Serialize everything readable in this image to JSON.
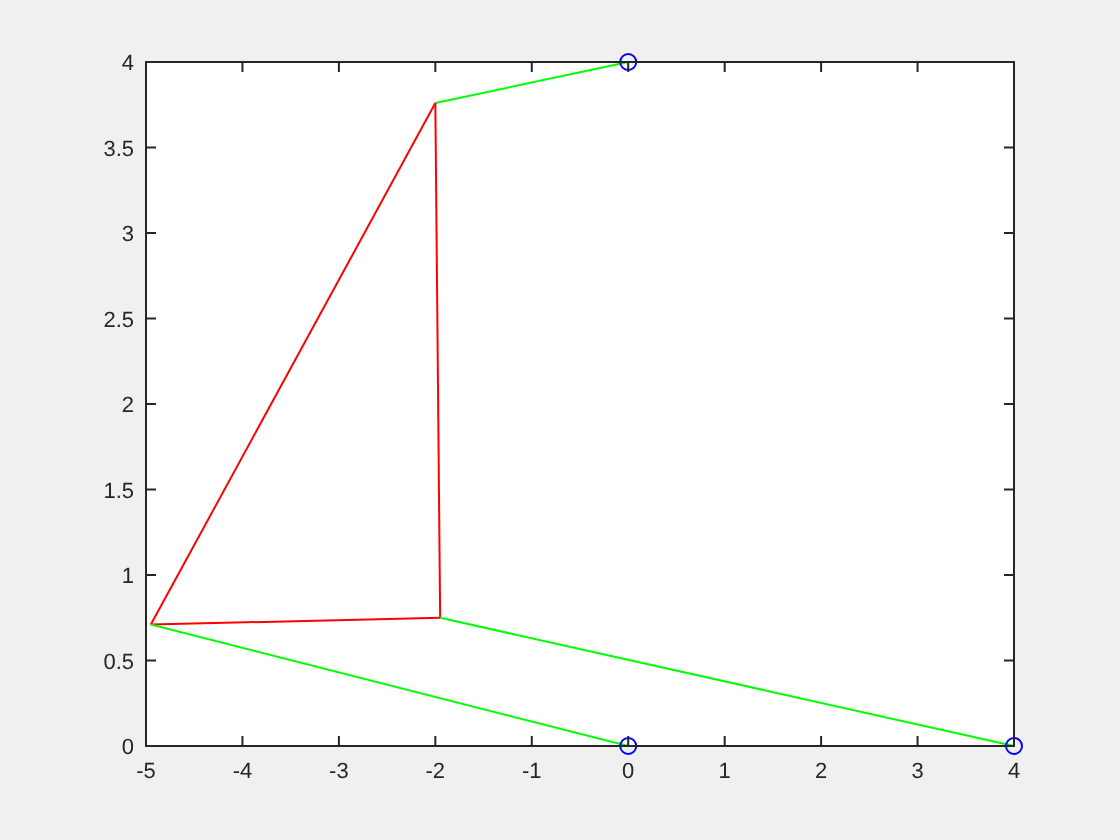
{
  "chart_data": {
    "type": "line",
    "xlim": [
      -5,
      4
    ],
    "xticks": [
      -5,
      -4,
      -3,
      -2,
      -1,
      0,
      1,
      2,
      3,
      4
    ],
    "ylim": [
      0,
      4
    ],
    "yticks": [
      0,
      0.5,
      1,
      1.5,
      2,
      2.5,
      3,
      3.5,
      4
    ],
    "grid": false,
    "marker": "none",
    "line_style": "solid",
    "series": [
      {
        "color": "#00ff00",
        "x": [
          -2,
          0
        ],
        "values": [
          3.76,
          4
        ]
      },
      {
        "color": "#ff0000",
        "x": [
          -4.95,
          -2
        ],
        "values": [
          0.71,
          3.76
        ]
      },
      {
        "color": "#ff0000",
        "x": [
          -4.95,
          -1.95
        ],
        "values": [
          0.71,
          0.75
        ]
      },
      {
        "color": "#ff0000",
        "x": [
          -2,
          -1.95
        ],
        "values": [
          3.76,
          0.75
        ]
      },
      {
        "color": "#00ff00",
        "x": [
          -4.95,
          0
        ],
        "values": [
          0.71,
          0
        ]
      },
      {
        "color": "#00ff00",
        "x": [
          -1.95,
          4
        ],
        "values": [
          0.75,
          0
        ]
      },
      {
        "type": "scatter",
        "color": "#0000ff",
        "marker": "circle",
        "x": [
          0,
          0,
          4
        ],
        "values": [
          4,
          0,
          0
        ]
      }
    ]
  }
}
